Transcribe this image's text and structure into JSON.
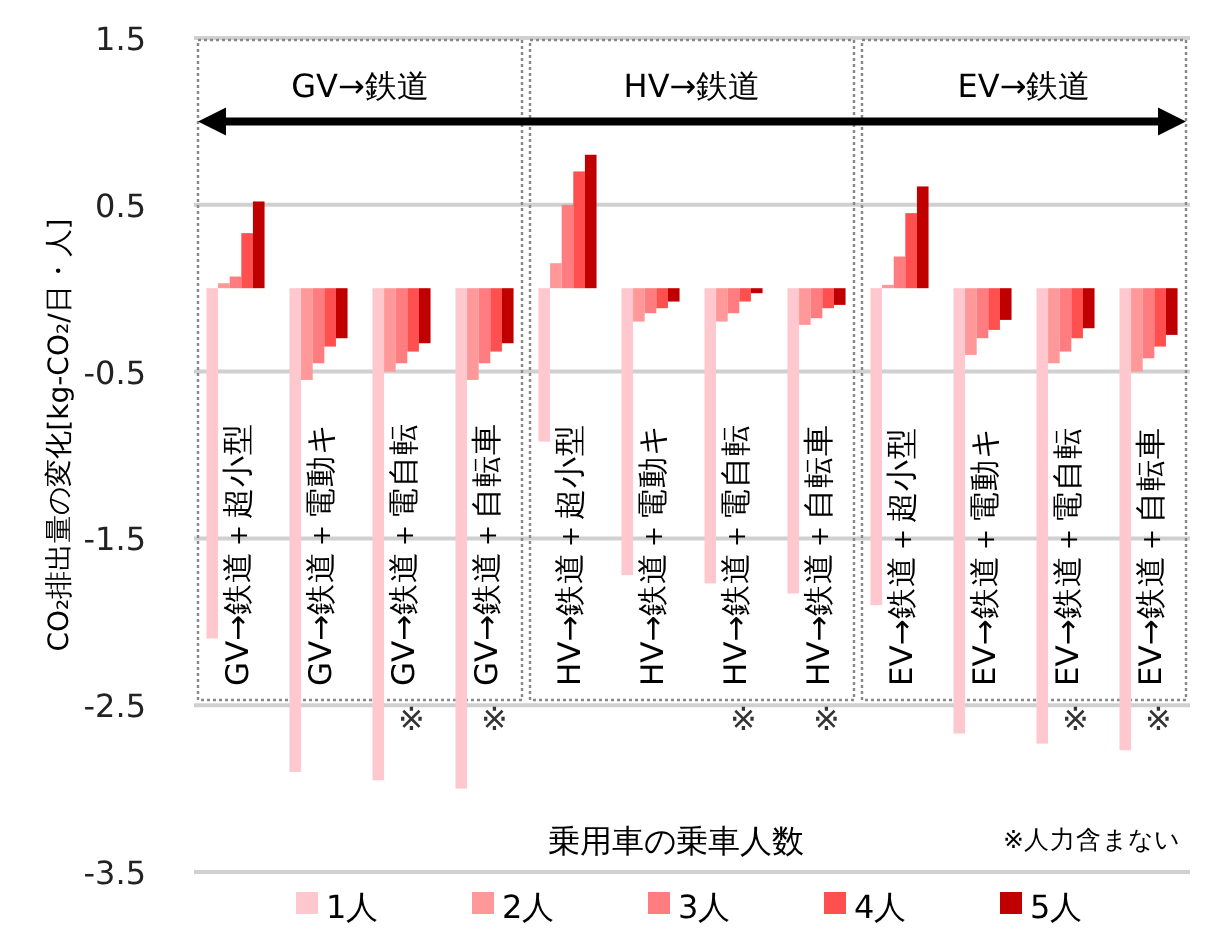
{
  "chart_data": {
    "type": "bar",
    "categories": [
      "GV→鉄道＋超小型",
      "GV→鉄道＋電動キ",
      "GV→鉄道＋電自転",
      "GV→鉄道＋自転車",
      "HV→鉄道＋超小型",
      "HV→鉄道＋電動キ",
      "HV→鉄道＋電自転",
      "HV→鉄道＋自転車",
      "EV→鉄道＋超小型",
      "EV→鉄道＋電動キ",
      "EV→鉄道＋電自転",
      "EV→鉄道＋自転車"
    ],
    "series": [
      {
        "name": "1人",
        "color": "#ffc7ce",
        "values": [
          -2.1,
          -2.9,
          -2.95,
          -3.0,
          -0.92,
          -1.72,
          -1.77,
          -1.83,
          -1.9,
          -2.67,
          -2.73,
          -2.77
        ]
      },
      {
        "name": "2人",
        "color": "#ff9999",
        "values": [
          0.03,
          -0.55,
          -0.5,
          -0.55,
          0.15,
          -0.2,
          -0.2,
          -0.22,
          0.02,
          -0.4,
          -0.45,
          -0.5
        ]
      },
      {
        "name": "3人",
        "color": "#ff7c80",
        "values": [
          0.07,
          -0.45,
          -0.45,
          -0.45,
          0.5,
          -0.15,
          -0.15,
          -0.18,
          0.19,
          -0.3,
          -0.38,
          -0.42
        ]
      },
      {
        "name": "4人",
        "color": "#ff4f4f",
        "values": [
          0.33,
          -0.35,
          -0.38,
          -0.38,
          0.7,
          -0.12,
          -0.08,
          -0.12,
          0.45,
          -0.25,
          -0.3,
          -0.35
        ]
      },
      {
        "name": "5人",
        "color": "#c00000",
        "values": [
          0.52,
          -0.3,
          -0.33,
          -0.33,
          0.8,
          -0.08,
          -0.03,
          -0.1,
          0.61,
          -0.19,
          -0.24,
          -0.28
        ]
      }
    ],
    "ylabel": "CO₂排出量の変化[kg-CO₂/日・人]",
    "xlabel": "乗用車の乗車人数",
    "ylim": [
      -3.5,
      1.5
    ],
    "yticks": [
      1.5,
      0.5,
      -0.5,
      -1.5,
      -2.5,
      -3.5
    ],
    "grid": "y",
    "legend": "bottom",
    "annotations": [
      "GV→鉄道",
      "HV→鉄道",
      "EV→鉄道",
      "※",
      "※",
      "※",
      "※",
      "※",
      "※",
      "※人力含まない"
    ]
  }
}
